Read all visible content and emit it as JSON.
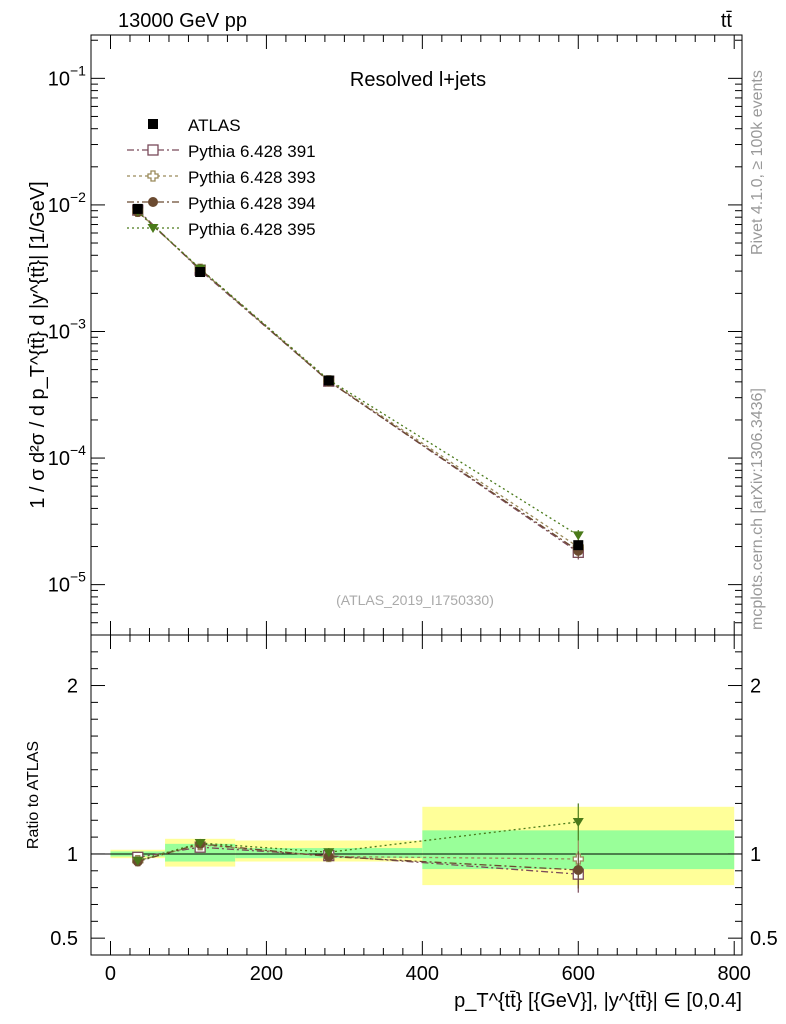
{
  "header": {
    "energy_label": "13000 GeV pp",
    "process_label": "tt̄"
  },
  "side_labels": {
    "rivet": "Rivet 4.1.0, ≥ 100k events",
    "mcplots": "mcplots.cern.ch [arXiv:1306.3436]"
  },
  "chart_data": [
    {
      "type": "scatter",
      "panel": "main",
      "title": "Resolved l+jets",
      "watermark": "(ATLAS_2019_I1750330)",
      "ylabel": "1 / σ d²σ / d p_T^{tt̄} d |y^{tt̄}| [1/GeV]",
      "yscale": "log",
      "ylim": [
        4e-06,
        0.22
      ],
      "xlim": [
        -25,
        810
      ],
      "y_tick_labels": [
        {
          "value": 1e-05,
          "label": "10",
          "exp": "−5"
        },
        {
          "value": 0.0001,
          "label": "10",
          "exp": "−4"
        },
        {
          "value": 0.001,
          "label": "10",
          "exp": "−3"
        },
        {
          "value": 0.01,
          "label": "10",
          "exp": "−2"
        },
        {
          "value": 0.1,
          "label": "10",
          "exp": "−1"
        }
      ],
      "x": [
        35,
        115,
        280,
        600
      ],
      "data_series": {
        "name": "ATLAS",
        "values": [
          0.0093,
          0.00295,
          0.00041,
          2.05e-05
        ],
        "errors": [
          0.0002,
          6e-05,
          1e-05,
          1.5e-06
        ]
      },
      "series": [
        {
          "name": "Pythia 6.428 391",
          "color": "#7a4a5a",
          "marker": "open-square",
          "dash": "7,3,2,3",
          "values": [
            0.0091,
            0.00305,
            0.000405,
            1.8e-05
          ],
          "errors": [
            0.00015,
            5e-05,
            1e-05,
            2.2e-06
          ]
        },
        {
          "name": "Pythia 6.428 393",
          "color": "#9a8a5a",
          "marker": "open-cross",
          "dash": "3,3",
          "values": [
            0.0089,
            0.0031,
            0.000408,
            1.98e-05
          ],
          "errors": [
            0.00015,
            5e-05,
            1e-05,
            2.2e-06
          ]
        },
        {
          "name": "Pythia 6.428 394",
          "color": "#6b4a30",
          "marker": "filled-circle",
          "dash": "7,3,2,3",
          "values": [
            0.0088,
            0.00312,
            0.000404,
            1.85e-05
          ],
          "errors": [
            0.00015,
            5e-05,
            1e-05,
            2.2e-06
          ]
        },
        {
          "name": "Pythia 6.428 395",
          "color": "#4a7a1a",
          "marker": "filled-triangle-down",
          "dash": "2,3",
          "values": [
            0.0089,
            0.00314,
            0.000415,
            2.45e-05
          ],
          "errors": [
            0.00015,
            5e-05,
            1e-05,
            2.5e-06
          ]
        }
      ]
    },
    {
      "type": "scatter",
      "panel": "ratio",
      "ylabel": "Ratio to ATLAS",
      "ylim": [
        0.4,
        2.3
      ],
      "xlim": [
        -25,
        810
      ],
      "xlabel": "p_T^{tt̄} [{GeV}], |y^{tt̄}| ∈ [0,0.4]",
      "x_ticks": [
        0,
        200,
        400,
        600,
        800
      ],
      "y_ticks": [
        0.5,
        1,
        2
      ],
      "bands": [
        {
          "x0": 0,
          "x1": 70,
          "yellow": [
            0.975,
            1.025
          ],
          "green": [
            0.985,
            1.015
          ]
        },
        {
          "x0": 70,
          "x1": 160,
          "yellow": [
            0.925,
            1.09
          ],
          "green": [
            0.955,
            1.06
          ]
        },
        {
          "x0": 160,
          "x1": 400,
          "yellow": [
            0.955,
            1.08
          ],
          "green": [
            0.975,
            1.035
          ]
        },
        {
          "x0": 400,
          "x1": 800,
          "yellow": [
            0.815,
            1.28
          ],
          "green": [
            0.91,
            1.14
          ]
        }
      ],
      "x": [
        35,
        115,
        280,
        600
      ],
      "series": [
        {
          "name": "Pythia 6.428 391",
          "values": [
            0.98,
            1.04,
            0.99,
            0.88
          ],
          "errors": [
            0.015,
            0.02,
            0.025,
            0.11
          ]
        },
        {
          "name": "Pythia 6.428 393",
          "values": [
            0.96,
            1.055,
            0.985,
            0.97
          ],
          "errors": [
            0.015,
            0.02,
            0.025,
            0.11
          ]
        },
        {
          "name": "Pythia 6.428 394",
          "values": [
            0.955,
            1.06,
            0.985,
            0.905
          ],
          "errors": [
            0.015,
            0.02,
            0.025,
            0.11
          ]
        },
        {
          "name": "Pythia 6.428 395",
          "values": [
            0.96,
            1.065,
            1.01,
            1.19
          ],
          "errors": [
            0.015,
            0.02,
            0.025,
            0.11
          ]
        }
      ]
    }
  ]
}
